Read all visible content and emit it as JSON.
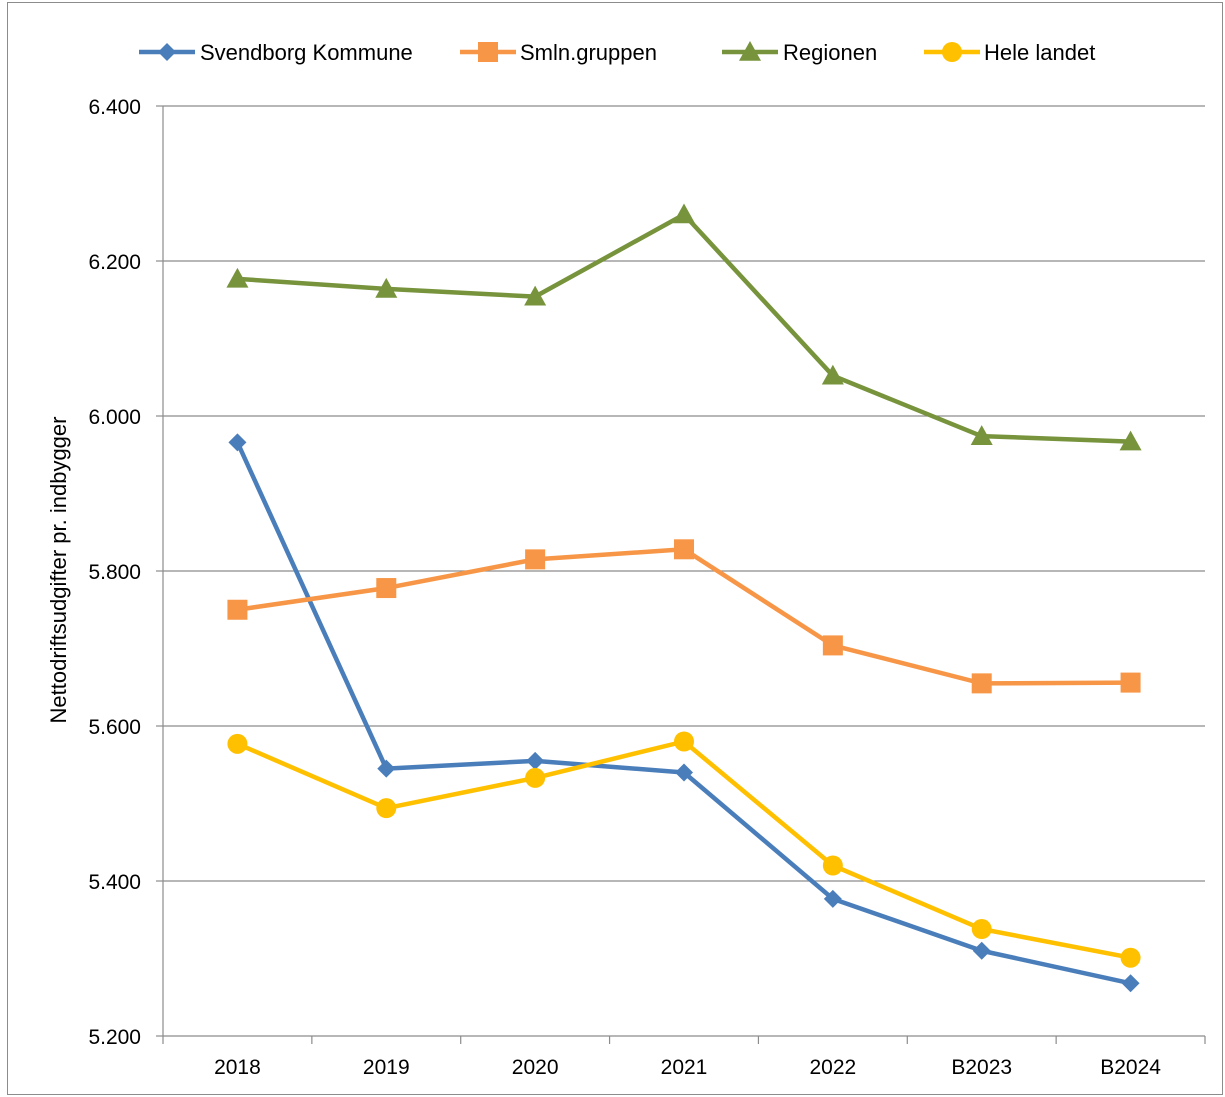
{
  "chart_data": {
    "type": "line",
    "title": "",
    "xlabel": "",
    "ylabel": "Nettodriftsudgifter pr. indbygger",
    "categories": [
      "2018",
      "2019",
      "2020",
      "2021",
      "2022",
      "B2023",
      "B2024"
    ],
    "ylim": [
      5200,
      6400
    ],
    "yticks": [
      5200,
      5400,
      5600,
      5800,
      6000,
      6200,
      6400
    ],
    "ytick_labels": [
      "5.200",
      "5.400",
      "5.600",
      "5.800",
      "6.000",
      "6.200",
      "6.400"
    ],
    "grid": "horizontal",
    "legend_position": "top",
    "series": [
      {
        "name": "Svendborg Kommune",
        "color": "#4a7ebb",
        "marker": "diamond",
        "values": [
          5966,
          5545,
          5555,
          5540,
          5377,
          5310,
          5268
        ]
      },
      {
        "name": "Smln.gruppen",
        "color": "#f79646",
        "marker": "square",
        "values": [
          5750,
          5778,
          5815,
          5828,
          5704,
          5655,
          5656
        ]
      },
      {
        "name": "Regionen",
        "color": "#77933c",
        "marker": "triangle",
        "values": [
          6177,
          6164,
          6154,
          6260,
          6052,
          5974,
          5967
        ]
      },
      {
        "name": "Hele landet",
        "color": "#ffc000",
        "marker": "circle",
        "values": [
          5577,
          5494,
          5533,
          5580,
          5420,
          5338,
          5301
        ]
      }
    ]
  }
}
